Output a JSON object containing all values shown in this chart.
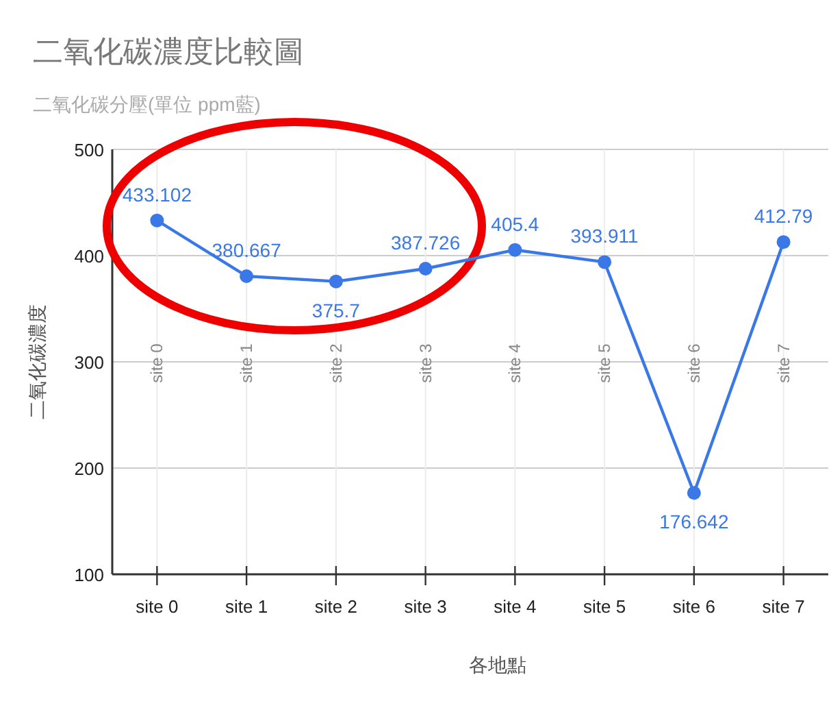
{
  "chart_data": {
    "type": "line",
    "title": "二氧化碳濃度比較圖",
    "subtitle": "二氧化碳分壓(單位 ppm藍)",
    "xlabel": "各地點",
    "ylabel": "二氧化碳濃度",
    "categories": [
      "site 0",
      "site 1",
      "site 2",
      "site 3",
      "site 4",
      "site 5",
      "site 6",
      "site 7"
    ],
    "series": [
      {
        "color": "#3b78e7",
        "values": [
          433.102,
          380.667,
          375.7,
          387.726,
          405.4,
          393.911,
          176.642,
          412.79
        ]
      }
    ],
    "ylim": [
      100,
      500
    ],
    "yticks": [
      100,
      200,
      300,
      400,
      500
    ],
    "grid": true,
    "marker": "circle",
    "line_style": "solid",
    "data_labels": true,
    "annotations": [
      {
        "text": "site 0",
        "x": "site 0"
      },
      {
        "text": "site 1",
        "x": "site 1"
      },
      {
        "text": "site 2",
        "x": "site 2"
      },
      {
        "text": "site 3",
        "x": "site 3"
      },
      {
        "text": "site 4",
        "x": "site 4"
      },
      {
        "text": "site 5",
        "x": "site 5"
      },
      {
        "text": "site 6",
        "x": "site 6"
      },
      {
        "text": "site 7",
        "x": "site 7"
      }
    ]
  }
}
